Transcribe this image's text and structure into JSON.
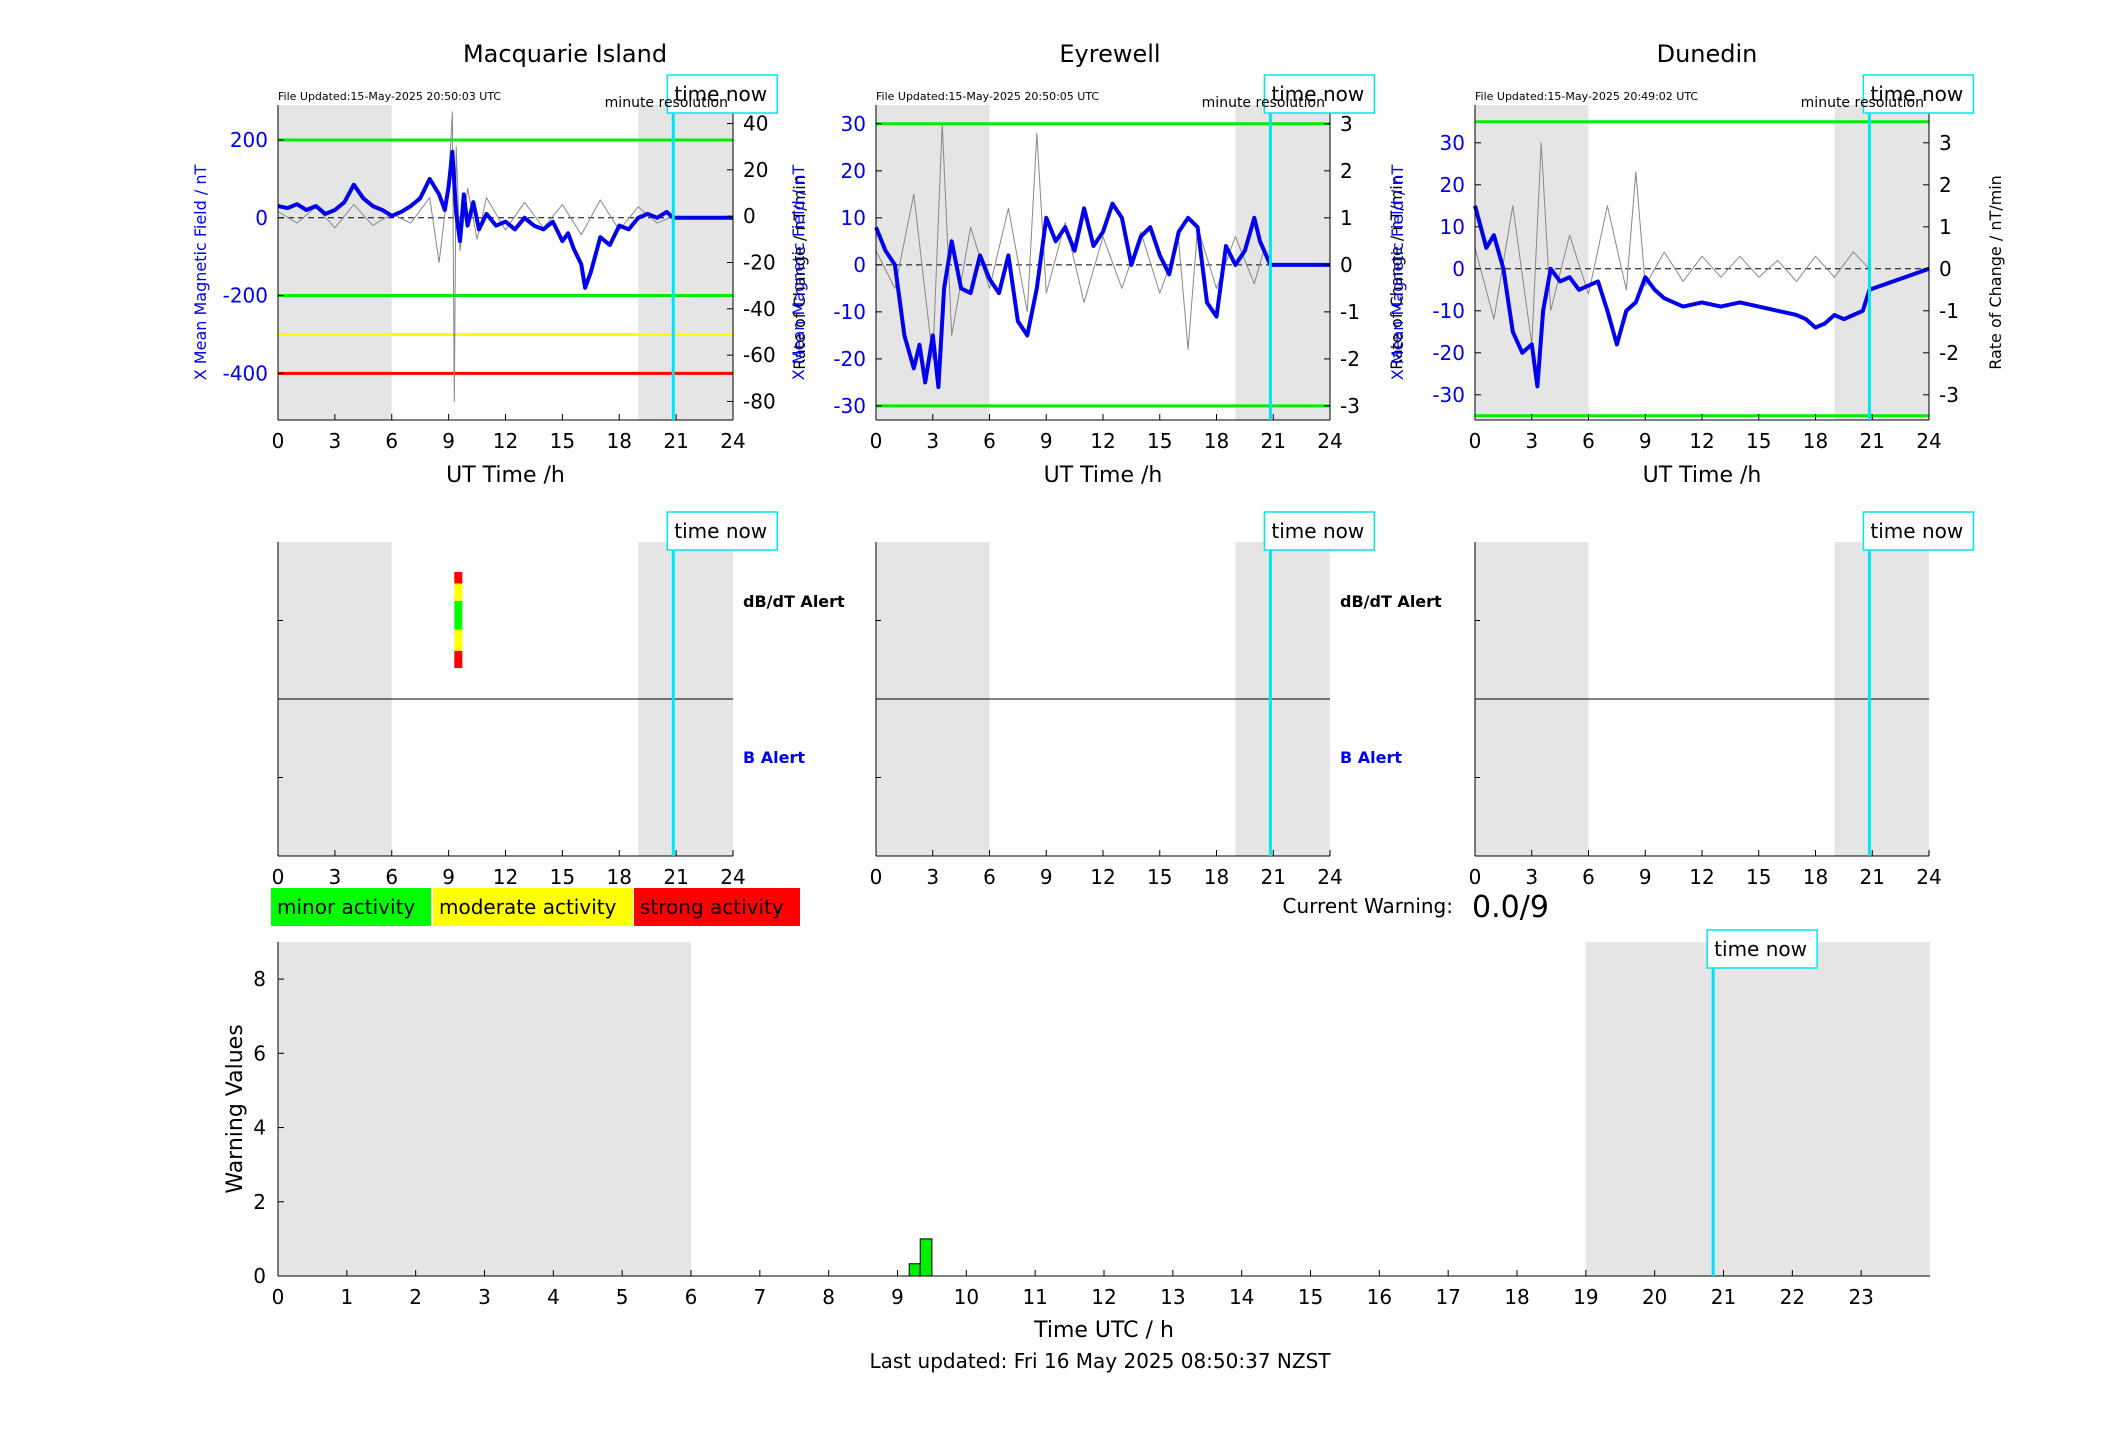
{
  "footer": "Last updated: Fri 16 May 2025 08:50:37 NZST",
  "current_warning": {
    "label": "Current Warning:",
    "value": "0.0/9"
  },
  "legend": [
    {
      "label": "minor activity",
      "color": "#00ff00"
    },
    {
      "label": "moderate activity",
      "color": "#ffff00"
    },
    {
      "label": "strong activity",
      "color": "#ff0000"
    }
  ],
  "time_now_label": "time now",
  "minute_resolution_label": "minute resolution",
  "alert_labels": {
    "dbdt": "dB/dT Alert",
    "b": "B Alert"
  },
  "colors": {
    "field": "#0000ee",
    "rate": "#888888",
    "time_now": "#00e5ee",
    "shade": "#e5e5e5",
    "green_line": "#00ee00",
    "yellow_line": "#ffff00",
    "red_line": "#ff0000"
  },
  "chart_data": [
    {
      "type": "line",
      "title": "Macquarie Island",
      "file_updated": "File Updated:15-May-2025 20:50:03 UTC",
      "xlabel": "UT Time /h",
      "ylabel_left": "X Mean Magnetic Field / nT",
      "ylabel_right": "Rate of Change / nT/min",
      "xlim": [
        0,
        24
      ],
      "xticks": [
        0,
        3,
        6,
        9,
        12,
        15,
        18,
        21,
        24
      ],
      "ylim_left": [
        -520,
        290
      ],
      "yticks_left": [
        200,
        0,
        -200,
        -400
      ],
      "ylim_right": [
        -88,
        48
      ],
      "yticks_right": [
        40,
        20,
        0,
        -20,
        -40,
        -60,
        -80
      ],
      "shaded_hours": [
        [
          0,
          6
        ],
        [
          19,
          24
        ]
      ],
      "time_now_h": 20.85,
      "threshold_lines": [
        {
          "value": 200,
          "color": "#00ee00"
        },
        {
          "value": -200,
          "color": "#00ee00"
        },
        {
          "value": -300,
          "color": "#ffff00"
        },
        {
          "value": -400,
          "color": "#ff0000"
        }
      ],
      "series": [
        {
          "x": [
            0,
            0.5,
            1,
            1.5,
            2,
            2.5,
            3,
            3.5,
            4,
            4.5,
            5,
            5.5,
            6,
            6.5,
            7,
            7.5,
            8,
            8.5,
            8.8,
            9,
            9.2,
            9.4,
            9.6,
            9.8,
            10,
            10.3,
            10.6,
            11,
            11.5,
            12,
            12.5,
            13,
            13.5,
            14,
            14.5,
            15,
            15.3,
            15.6,
            16,
            16.2,
            16.5,
            17,
            17.5,
            18,
            18.5,
            19,
            19.5,
            20,
            20.5,
            20.85,
            24
          ],
          "values": [
            30,
            25,
            35,
            20,
            30,
            10,
            20,
            40,
            85,
            50,
            30,
            20,
            5,
            15,
            30,
            50,
            100,
            60,
            20,
            80,
            170,
            10,
            -60,
            60,
            -20,
            40,
            -30,
            10,
            -20,
            -10,
            -30,
            0,
            -20,
            -30,
            -10,
            -60,
            -40,
            -80,
            -120,
            -180,
            -140,
            -50,
            -70,
            -20,
            -30,
            0,
            10,
            0,
            15,
            0,
            0
          ]
        },
        {
          "name": "rate",
          "x": [
            0,
            1,
            2,
            3,
            4,
            5,
            6,
            7,
            8,
            8.5,
            9,
            9.2,
            9.3,
            9.4,
            9.6,
            10,
            10.5,
            11,
            12,
            13,
            14,
            15,
            16,
            17,
            18,
            19,
            20,
            20.85
          ],
          "values": [
            2,
            -3,
            4,
            -5,
            5,
            -4,
            1,
            -3,
            8,
            -20,
            15,
            45,
            -80,
            30,
            -15,
            12,
            -10,
            8,
            -6,
            6,
            -5,
            5,
            -8,
            7,
            -6,
            4,
            -3,
            0
          ]
        }
      ]
    },
    {
      "type": "line",
      "title": "Eyrewell",
      "file_updated": "File Updated:15-May-2025 20:50:05 UTC",
      "xlabel": "UT Time /h",
      "ylabel_left": "X Mean Magnetic Field / nT",
      "ylabel_right": "Rate of Change / nT/min",
      "xlim": [
        0,
        24
      ],
      "xticks": [
        0,
        3,
        6,
        9,
        12,
        15,
        18,
        21,
        24
      ],
      "ylim_left": [
        -33,
        34
      ],
      "yticks_left": [
        30,
        20,
        10,
        0,
        -10,
        -20,
        -30
      ],
      "ylim_right": [
        -3.3,
        3.4
      ],
      "yticks_right": [
        3,
        2,
        1,
        0,
        -1,
        -2,
        -3
      ],
      "shaded_hours": [
        [
          0,
          6
        ],
        [
          19,
          24
        ]
      ],
      "time_now_h": 20.85,
      "threshold_lines": [
        {
          "value": 30,
          "color": "#00ee00"
        },
        {
          "value": -30,
          "color": "#00ee00"
        }
      ],
      "series": [
        {
          "x": [
            0,
            0.5,
            1,
            1.5,
            2,
            2.3,
            2.6,
            3,
            3.3,
            3.6,
            4,
            4.5,
            5,
            5.5,
            6,
            6.5,
            7,
            7.5,
            8,
            8.5,
            9,
            9.5,
            10,
            10.5,
            11,
            11.5,
            12,
            12.5,
            13,
            13.5,
            14,
            14.5,
            15,
            15.5,
            16,
            16.5,
            17,
            17.5,
            18,
            18.5,
            19,
            19.5,
            20,
            20.3,
            20.85,
            24
          ],
          "values": [
            8,
            3,
            0,
            -15,
            -22,
            -17,
            -25,
            -15,
            -26,
            -5,
            5,
            -5,
            -6,
            2,
            -3,
            -6,
            2,
            -12,
            -15,
            -5,
            10,
            5,
            8,
            3,
            12,
            4,
            7,
            13,
            10,
            0,
            6,
            8,
            2,
            -2,
            7,
            10,
            8,
            -8,
            -11,
            4,
            0,
            3,
            10,
            5,
            0,
            0
          ]
        },
        {
          "name": "rate",
          "x": [
            0,
            1,
            2,
            3,
            3.5,
            4,
            5,
            6,
            7,
            8,
            8.5,
            9,
            10,
            11,
            12,
            13,
            14,
            15,
            16,
            16.5,
            17,
            18,
            19,
            20,
            20.5
          ],
          "values": [
            0.3,
            -0.5,
            1.5,
            -2,
            3,
            -1.5,
            0.8,
            -0.5,
            1.2,
            -1,
            2.8,
            -0.6,
            0.9,
            -0.8,
            0.6,
            -0.5,
            0.7,
            -0.6,
            0.5,
            -1.8,
            0.8,
            -0.5,
            0.6,
            -0.4,
            0.3
          ]
        }
      ]
    },
    {
      "type": "line",
      "title": "Dunedin",
      "file_updated": "File Updated:15-May-2025 20:49:02 UTC",
      "xlabel": "UT Time /h",
      "ylabel_left": "X Mean Magnetic Field / nT",
      "ylabel_right": "Rate of Change / nT/min",
      "xlim": [
        0,
        24
      ],
      "xticks": [
        0,
        3,
        6,
        9,
        12,
        15,
        18,
        21,
        24
      ],
      "ylim_left": [
        -36,
        39
      ],
      "yticks_left": [
        30,
        20,
        10,
        0,
        -10,
        -20,
        -30
      ],
      "ylim_right": [
        -3.6,
        3.9
      ],
      "yticks_right": [
        3,
        2,
        1,
        0,
        -1,
        -2,
        -3
      ],
      "shaded_hours": [
        [
          0,
          6
        ],
        [
          19,
          24
        ]
      ],
      "time_now_h": 20.85,
      "threshold_lines": [
        {
          "value": 35,
          "color": "#00ee00"
        },
        {
          "value": -35,
          "color": "#00ee00"
        }
      ],
      "series": [
        {
          "x": [
            0,
            0.3,
            0.6,
            1,
            1.5,
            2,
            2.5,
            3,
            3.3,
            3.6,
            4,
            4.5,
            5,
            5.5,
            6,
            6.5,
            7,
            7.5,
            8,
            8.5,
            9,
            9.5,
            10,
            11,
            12,
            13,
            14,
            15,
            16,
            17,
            17.5,
            18,
            18.5,
            19,
            19.5,
            20,
            20.5,
            20.85,
            24
          ],
          "values": [
            15,
            10,
            5,
            8,
            0,
            -15,
            -20,
            -18,
            -28,
            -10,
            0,
            -3,
            -2,
            -5,
            -4,
            -3,
            -10,
            -18,
            -10,
            -8,
            -2,
            -5,
            -7,
            -9,
            -8,
            -9,
            -8,
            -9,
            -10,
            -11,
            -12,
            -14,
            -13,
            -11,
            -12,
            -11,
            -10,
            -5,
            0
          ]
        },
        {
          "name": "rate",
          "x": [
            0,
            1,
            2,
            3,
            3.5,
            4,
            5,
            6,
            7,
            8,
            8.5,
            9,
            10,
            11,
            12,
            13,
            14,
            15,
            16,
            17,
            18,
            19,
            20,
            20.85
          ],
          "values": [
            0.5,
            -1.2,
            1.5,
            -1.8,
            3,
            -1,
            0.8,
            -0.6,
            1.5,
            -0.5,
            2.3,
            -0.4,
            0.4,
            -0.3,
            0.3,
            -0.2,
            0.3,
            -0.2,
            0.2,
            -0.3,
            0.3,
            -0.2,
            0.4,
            0
          ]
        }
      ]
    },
    {
      "type": "bar",
      "title": "",
      "xlabel": "",
      "ylabel": "",
      "xlim": [
        0,
        24
      ],
      "xticks": [
        0,
        3,
        6,
        9,
        12,
        15,
        18,
        21,
        24
      ],
      "shaded_hours": [
        [
          0,
          6
        ],
        [
          19,
          24
        ]
      ],
      "time_now_h": 20.85,
      "row_labels": [
        "dB/dT Alert",
        "B Alert"
      ],
      "alerts": [
        {
          "row": "dB/dT Alert",
          "start_h": 9.3,
          "end_h": 9.5,
          "levels_bottom_to_top": [
            "strong",
            "moderate",
            "minor",
            "moderate",
            "strong"
          ]
        }
      ]
    },
    {
      "type": "bar",
      "title": "",
      "xlim": [
        0,
        24
      ],
      "xticks": [
        0,
        3,
        6,
        9,
        12,
        15,
        18,
        21,
        24
      ],
      "shaded_hours": [
        [
          0,
          6
        ],
        [
          19,
          24
        ]
      ],
      "time_now_h": 20.85,
      "row_labels": [
        "dB/dT Alert",
        "B Alert"
      ],
      "alerts": []
    },
    {
      "type": "bar",
      "title": "",
      "xlim": [
        0,
        24
      ],
      "xticks": [
        0,
        3,
        6,
        9,
        12,
        15,
        18,
        21,
        24
      ],
      "shaded_hours": [
        [
          0,
          6
        ],
        [
          19,
          24
        ]
      ],
      "time_now_h": 20.85,
      "row_labels": [],
      "alerts": []
    },
    {
      "type": "bar",
      "title": "",
      "xlabel": "Time UTC / h",
      "ylabel": "Warning Values",
      "xlim": [
        0,
        24
      ],
      "xticks": [
        0,
        1,
        2,
        3,
        4,
        5,
        6,
        7,
        8,
        9,
        10,
        11,
        12,
        13,
        14,
        15,
        16,
        17,
        18,
        19,
        20,
        21,
        22,
        23
      ],
      "ylim": [
        0,
        9
      ],
      "yticks": [
        0,
        2,
        4,
        6,
        8
      ],
      "shaded_hours": [
        [
          0,
          6
        ],
        [
          19,
          24
        ]
      ],
      "time_now_h": 20.85,
      "bars": [
        {
          "start_h": 9.17,
          "end_h": 9.33,
          "value": 0.33
        },
        {
          "start_h": 9.33,
          "end_h": 9.5,
          "value": 1.0
        }
      ]
    }
  ]
}
